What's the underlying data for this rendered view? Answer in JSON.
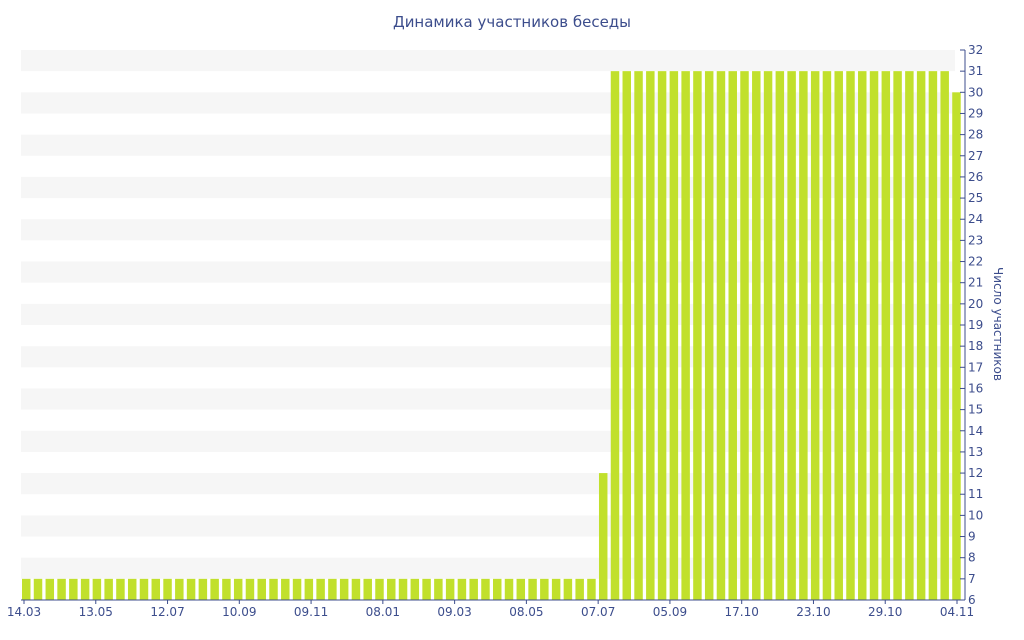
{
  "chart_data": {
    "type": "bar",
    "title": "Динамика участников беседы",
    "xlabel": "",
    "ylabel": "Число участников",
    "ylim": [
      6,
      32
    ],
    "y_ticks": [
      6,
      7,
      8,
      9,
      10,
      11,
      12,
      13,
      14,
      15,
      16,
      17,
      18,
      19,
      20,
      21,
      22,
      23,
      24,
      25,
      26,
      27,
      28,
      29,
      30,
      31,
      32
    ],
    "x_tick_labels": [
      "14.03",
      "13.05",
      "12.07",
      "10.09",
      "09.11",
      "08.01",
      "09.03",
      "08.05",
      "07.07",
      "05.09",
      "17.10",
      "23.10",
      "29.10",
      "04.11"
    ],
    "grid": "horizontal-bands",
    "bar_color": "#c1e02c",
    "band_color": "#f6f6f6",
    "text_color": "#3c4d8c",
    "values": [
      7,
      7,
      7,
      7,
      7,
      7,
      7,
      7,
      7,
      7,
      7,
      7,
      7,
      7,
      7,
      7,
      7,
      7,
      7,
      7,
      7,
      7,
      7,
      7,
      7,
      7,
      7,
      7,
      7,
      7,
      7,
      7,
      7,
      7,
      7,
      7,
      7,
      7,
      7,
      7,
      7,
      7,
      7,
      7,
      7,
      7,
      7,
      7,
      7,
      12,
      31,
      31,
      31,
      31,
      31,
      31,
      31,
      31,
      31,
      31,
      31,
      31,
      31,
      31,
      31,
      31,
      31,
      31,
      31,
      31,
      31,
      31,
      31,
      31,
      31,
      31,
      31,
      31,
      31,
      30
    ]
  }
}
